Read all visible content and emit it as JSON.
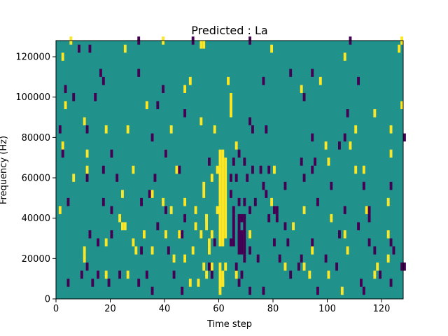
{
  "chart_data": {
    "type": "heatmap",
    "title": "Predicted : La",
    "xlabel": "Time step",
    "ylabel": "Frequency (Hz)",
    "xlim": [
      0,
      128
    ],
    "ylim": [
      0,
      128000
    ],
    "x_ticks": [
      0,
      20,
      40,
      60,
      80,
      100,
      120
    ],
    "y_ticks": [
      0,
      20000,
      40000,
      60000,
      80000,
      100000,
      120000
    ],
    "y_tick_labels": [
      "0",
      "20000",
      "40000",
      "60000",
      "80000",
      "100000",
      "120000"
    ],
    "grid": false,
    "legend": "none",
    "colormap": "viridis",
    "colors": {
      "background": "#21918c",
      "high": "#fde725",
      "low": "#440154"
    },
    "cell_height_hz": 4000,
    "high_cells": [
      [
        5,
        126000
      ],
      [
        127,
        126000
      ],
      [
        54,
        124000
      ],
      [
        53,
        124000
      ],
      [
        39,
        126000
      ],
      [
        126,
        122000
      ],
      [
        25,
        122000
      ],
      [
        79,
        122000
      ],
      [
        2,
        118000
      ],
      [
        106,
        118000
      ],
      [
        63,
        106000
      ],
      [
        49,
        106000
      ],
      [
        47,
        102000
      ],
      [
        97,
        106000
      ],
      [
        90,
        102000
      ],
      [
        3,
        94000
      ],
      [
        33,
        94000
      ],
      [
        64,
        98000
      ],
      [
        64,
        94000
      ],
      [
        64,
        90000
      ],
      [
        117,
        90000
      ],
      [
        127,
        94000
      ],
      [
        10,
        86000
      ],
      [
        18,
        82000
      ],
      [
        26,
        82000
      ],
      [
        42,
        82000
      ],
      [
        53,
        86000
      ],
      [
        58,
        82000
      ],
      [
        110,
        82000
      ],
      [
        123,
        82000
      ],
      [
        2,
        74000
      ],
      [
        11,
        70000
      ],
      [
        40,
        70000
      ],
      [
        66,
        74000
      ],
      [
        99,
        74000
      ],
      [
        108,
        74000
      ],
      [
        123,
        70000
      ],
      [
        6,
        58000
      ],
      [
        11,
        62000
      ],
      [
        28,
        62000
      ],
      [
        44,
        62000
      ],
      [
        57,
        58000
      ],
      [
        59,
        62000
      ],
      [
        80,
        62000
      ],
      [
        100,
        66000
      ],
      [
        110,
        62000
      ],
      [
        113,
        62000
      ],
      [
        24,
        50000
      ],
      [
        35,
        50000
      ],
      [
        39,
        46000
      ],
      [
        42,
        42000
      ],
      [
        47,
        46000
      ],
      [
        51,
        42000
      ],
      [
        55,
        38000
      ],
      [
        59,
        42000
      ],
      [
        79,
        46000
      ],
      [
        91,
        42000
      ],
      [
        101,
        38000
      ],
      [
        114,
        42000
      ],
      [
        122,
        46000
      ],
      [
        1,
        42000
      ],
      [
        24,
        34000
      ],
      [
        25,
        34000
      ],
      [
        28,
        26000
      ],
      [
        32,
        30000
      ],
      [
        40,
        30000
      ],
      [
        45,
        30000
      ],
      [
        51,
        34000
      ],
      [
        53,
        30000
      ],
      [
        56,
        26000
      ],
      [
        56,
        22000
      ],
      [
        57,
        30000
      ],
      [
        71,
        30000
      ],
      [
        87,
        34000
      ],
      [
        106,
        30000
      ],
      [
        122,
        30000
      ],
      [
        10,
        22000
      ],
      [
        10,
        18000
      ],
      [
        18,
        26000
      ],
      [
        29,
        22000
      ],
      [
        35,
        22000
      ],
      [
        43,
        18000
      ],
      [
        47,
        18000
      ],
      [
        50,
        22000
      ],
      [
        54,
        14000
      ],
      [
        57,
        14000
      ],
      [
        62,
        14000
      ],
      [
        84,
        14000
      ],
      [
        94,
        22000
      ],
      [
        107,
        22000
      ],
      [
        118,
        14000
      ],
      [
        18,
        10000
      ],
      [
        26,
        10000
      ],
      [
        49,
        6000
      ],
      [
        52,
        6000
      ],
      [
        55,
        10000
      ],
      [
        61,
        6000
      ],
      [
        66,
        10000
      ],
      [
        93,
        10000
      ],
      [
        100,
        10000
      ],
      [
        105,
        2000
      ],
      [
        117,
        10000
      ],
      [
        122,
        18000
      ],
      [
        91,
        14000
      ]
    ],
    "high_bands": [
      [
        60,
        26000,
        74000
      ],
      [
        61,
        26000,
        74000
      ],
      [
        62,
        30000,
        70000
      ],
      [
        60,
        2000,
        18000
      ],
      [
        61,
        6000,
        14000
      ],
      [
        54,
        50000,
        58000
      ],
      [
        55,
        34000,
        42000
      ],
      [
        23,
        38000,
        42000
      ]
    ],
    "low_cells": [
      [
        30,
        126000
      ],
      [
        50,
        126000
      ],
      [
        71,
        126000
      ],
      [
        108,
        126000
      ],
      [
        8,
        122000
      ],
      [
        12,
        122000
      ],
      [
        16,
        110000
      ],
      [
        30,
        110000
      ],
      [
        86,
        110000
      ],
      [
        94,
        110000
      ],
      [
        3,
        102000
      ],
      [
        6,
        98000
      ],
      [
        17,
        106000
      ],
      [
        39,
        102000
      ],
      [
        76,
        106000
      ],
      [
        91,
        98000
      ],
      [
        111,
        106000
      ],
      [
        107,
        90000
      ],
      [
        37,
        94000
      ],
      [
        47,
        90000
      ],
      [
        11,
        82000
      ],
      [
        71,
        86000
      ],
      [
        72,
        82000
      ],
      [
        77,
        82000
      ],
      [
        94,
        78000
      ],
      [
        106,
        78000
      ],
      [
        128,
        78000
      ],
      [
        1,
        82000
      ],
      [
        2,
        70000
      ],
      [
        20,
        70000
      ],
      [
        35,
        78000
      ],
      [
        40,
        70000
      ],
      [
        65,
        66000
      ],
      [
        67,
        70000
      ],
      [
        69,
        66000
      ],
      [
        72,
        62000
      ],
      [
        75,
        62000
      ],
      [
        78,
        62000
      ],
      [
        90,
        66000
      ],
      [
        95,
        66000
      ],
      [
        94,
        62000
      ],
      [
        104,
        74000
      ],
      [
        11,
        58000
      ],
      [
        17,
        62000
      ],
      [
        22,
        58000
      ],
      [
        36,
        58000
      ],
      [
        45,
        62000
      ],
      [
        56,
        66000
      ],
      [
        64,
        58000
      ],
      [
        66,
        58000
      ],
      [
        70,
        58000
      ],
      [
        76,
        54000
      ],
      [
        84,
        54000
      ],
      [
        91,
        58000
      ],
      [
        101,
        54000
      ],
      [
        113,
        54000
      ],
      [
        123,
        54000
      ],
      [
        4,
        46000
      ],
      [
        17,
        46000
      ],
      [
        20,
        42000
      ],
      [
        31,
        46000
      ],
      [
        34,
        50000
      ],
      [
        40,
        42000
      ],
      [
        47,
        38000
      ],
      [
        64,
        50000
      ],
      [
        65,
        42000
      ],
      [
        67,
        46000
      ],
      [
        68,
        38000
      ],
      [
        69,
        46000
      ],
      [
        71,
        42000
      ],
      [
        73,
        46000
      ],
      [
        77,
        50000
      ],
      [
        78,
        38000
      ],
      [
        80,
        42000
      ],
      [
        81,
        42000
      ],
      [
        81,
        38000
      ],
      [
        84,
        34000
      ],
      [
        96,
        46000
      ],
      [
        106,
        42000
      ],
      [
        115,
        42000
      ],
      [
        115,
        38000
      ],
      [
        12,
        30000
      ],
      [
        15,
        26000
      ],
      [
        20,
        30000
      ],
      [
        31,
        22000
      ],
      [
        37,
        34000
      ],
      [
        41,
        22000
      ],
      [
        46,
        30000
      ],
      [
        58,
        26000
      ],
      [
        64,
        26000
      ],
      [
        65,
        26000
      ],
      [
        67,
        30000
      ],
      [
        67,
        26000
      ],
      [
        71,
        22000
      ],
      [
        80,
        26000
      ],
      [
        85,
        26000
      ],
      [
        94,
        26000
      ],
      [
        104,
        30000
      ],
      [
        111,
        34000
      ],
      [
        115,
        26000
      ],
      [
        117,
        22000
      ],
      [
        123,
        26000
      ],
      [
        124,
        22000
      ],
      [
        9,
        10000
      ],
      [
        11,
        14000
      ],
      [
        15,
        10000
      ],
      [
        23,
        10000
      ],
      [
        30,
        6000
      ],
      [
        33,
        10000
      ],
      [
        43,
        10000
      ],
      [
        56,
        14000
      ],
      [
        57,
        10000
      ],
      [
        66,
        14000
      ],
      [
        67,
        6000
      ],
      [
        68,
        10000
      ],
      [
        69,
        18000
      ],
      [
        74,
        18000
      ],
      [
        82,
        18000
      ],
      [
        86,
        10000
      ],
      [
        89,
        14000
      ],
      [
        90,
        18000
      ],
      [
        99,
        18000
      ],
      [
        103,
        14000
      ],
      [
        112,
        6000
      ],
      [
        119,
        10000
      ],
      [
        123,
        6000
      ],
      [
        127,
        14000
      ],
      [
        128,
        14000
      ],
      [
        4,
        6000
      ],
      [
        13,
        6000
      ],
      [
        19,
        6000
      ],
      [
        35,
        2000
      ],
      [
        46,
        2000
      ],
      [
        71,
        2000
      ],
      [
        76,
        2000
      ],
      [
        96,
        2000
      ],
      [
        113,
        2000
      ],
      [
        14,
        98000
      ]
    ],
    "low_bands": [
      [
        67,
        22000,
        42000
      ],
      [
        68,
        22000,
        34000
      ],
      [
        69,
        22000,
        42000
      ],
      [
        65,
        30000,
        42000
      ]
    ]
  }
}
